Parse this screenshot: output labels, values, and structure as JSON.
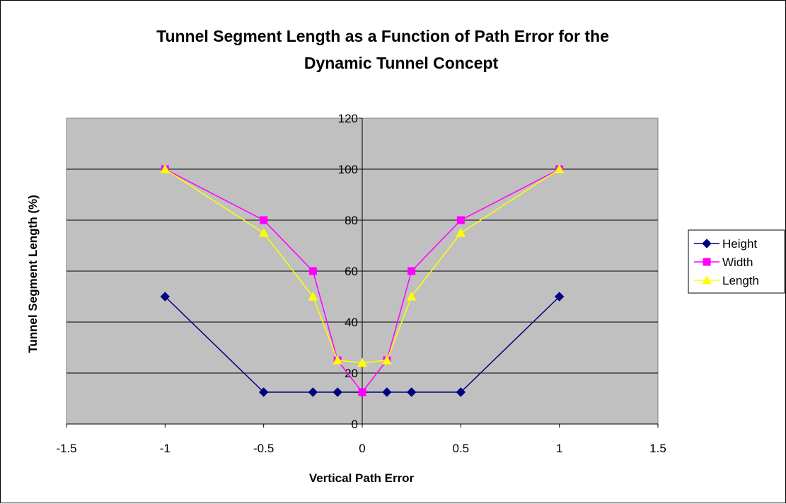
{
  "chart_data": {
    "type": "scatter",
    "title_lines": [
      "Tunnel Segment Length as a Function of Path Error for the",
      "Dynamic Tunnel Concept"
    ],
    "xlabel": "Vertical Path Error",
    "ylabel": "Tunnel Segment Length (%)",
    "xlim": [
      -1.5,
      1.5
    ],
    "ylim": [
      0,
      120
    ],
    "x_ticks": [
      -1.5,
      -1,
      -0.5,
      0,
      0.5,
      1,
      1.5
    ],
    "x_tick_labels": [
      "-1.5",
      "-1",
      "-0.5",
      "0",
      "0.5",
      "1",
      "1.5"
    ],
    "y_ticks": [
      0,
      20,
      40,
      60,
      80,
      100,
      120
    ],
    "y_tick_labels": [
      "0",
      "20",
      "40",
      "60",
      "80",
      "100",
      "120"
    ],
    "grid": "horizontal major gridlines",
    "plot_background": "#c0c0c0",
    "legend_position": "right",
    "series": [
      {
        "name": "Height",
        "color": "#000080",
        "marker": "diamond",
        "x": [
          -1,
          -0.5,
          -0.25,
          -0.125,
          0,
          0.125,
          0.25,
          0.5,
          1
        ],
        "y": [
          50,
          12.5,
          12.5,
          12.5,
          12.5,
          12.5,
          12.5,
          12.5,
          50
        ]
      },
      {
        "name": "Width",
        "color": "#ff00ff",
        "marker": "square",
        "x": [
          -1,
          -0.5,
          -0.25,
          -0.125,
          0,
          0.125,
          0.25,
          0.5,
          1
        ],
        "y": [
          100,
          80,
          60,
          25,
          12.5,
          25,
          60,
          80,
          100
        ]
      },
      {
        "name": "Length",
        "color": "#ffff00",
        "marker": "triangle",
        "x": [
          -1,
          -0.5,
          -0.25,
          -0.125,
          0,
          0.125,
          0.25,
          0.5,
          1
        ],
        "y": [
          100,
          75,
          50,
          25,
          24,
          25,
          50,
          75,
          100
        ]
      }
    ]
  }
}
